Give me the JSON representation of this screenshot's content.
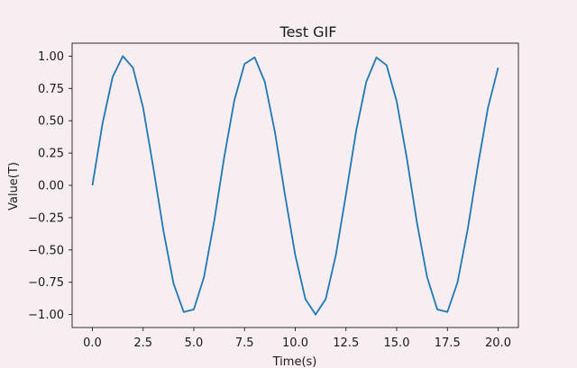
{
  "chart_data": {
    "type": "line",
    "title": "Test GIF",
    "xlabel": "Time(s)",
    "ylabel": "Value(T)",
    "xlim": [
      -1.0,
      21.0
    ],
    "ylim": [
      -1.1,
      1.1
    ],
    "x_ticks": [
      0.0,
      2.5,
      5.0,
      7.5,
      10.0,
      12.5,
      15.0,
      17.5,
      20.0
    ],
    "x_tick_labels": [
      "0.0",
      "2.5",
      "5.0",
      "7.5",
      "10.0",
      "12.5",
      "15.0",
      "17.5",
      "20.0"
    ],
    "y_ticks": [
      1.0,
      0.75,
      0.5,
      0.25,
      0.0,
      -0.25,
      -0.5,
      -0.75,
      -1.0
    ],
    "y_tick_labels": [
      "1.00",
      "0.75",
      "0.50",
      "0.25",
      "0.00",
      "−0.25",
      "−0.50",
      "−0.75",
      "−1.00"
    ],
    "grid": false,
    "series": [
      {
        "color": "#1f77b4",
        "x": [
          0.0,
          0.5,
          1.0,
          1.5,
          2.0,
          2.5,
          3.0,
          3.5,
          4.0,
          4.5,
          5.0,
          5.5,
          6.0,
          6.5,
          7.0,
          7.5,
          8.0,
          8.5,
          9.0,
          9.5,
          10.0,
          10.5,
          11.0,
          11.5,
          12.0,
          12.5,
          13.0,
          13.5,
          14.0,
          14.5,
          15.0,
          15.5,
          16.0,
          16.5,
          17.0,
          17.5,
          18.0,
          18.5,
          19.0,
          19.5,
          20.0
        ],
        "y": [
          0.0,
          0.48,
          0.84,
          1.0,
          0.91,
          0.6,
          0.14,
          -0.35,
          -0.76,
          -0.98,
          -0.96,
          -0.71,
          -0.28,
          0.22,
          0.66,
          0.94,
          0.99,
          0.8,
          0.41,
          -0.08,
          -0.54,
          -0.88,
          -1.0,
          -0.88,
          -0.54,
          -0.07,
          0.42,
          0.8,
          0.99,
          0.93,
          0.65,
          0.21,
          -0.29,
          -0.71,
          -0.96,
          -0.98,
          -0.75,
          -0.34,
          0.15,
          0.6,
          0.91
        ]
      }
    ]
  }
}
